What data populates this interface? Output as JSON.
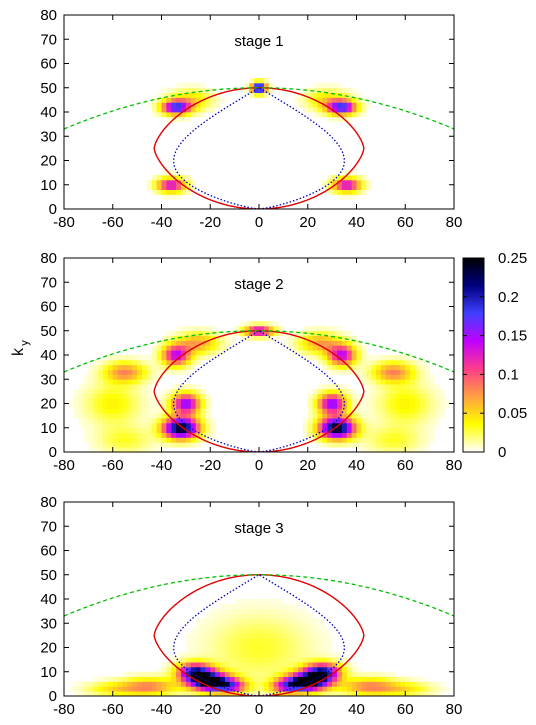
{
  "figure": {
    "ylabel": "k",
    "ylabel_sub": "y"
  },
  "colorbar": {
    "ticks": [
      "0.25",
      "0.2",
      "0.15",
      "0.1",
      "0.05",
      "0"
    ],
    "tick_values": [
      0.25,
      0.2,
      0.15,
      0.1,
      0.05,
      0
    ],
    "range": [
      0,
      0.25
    ],
    "stops": [
      "#ffffff",
      "#ffff00",
      "#ffa040",
      "#ff3c8c",
      "#c000ff",
      "#4040ff",
      "#000080",
      "#000000"
    ]
  },
  "colors": {
    "red_curve": "#e00000",
    "blue_curve": "#0000c0",
    "green_curve": "#00c000"
  },
  "chart_data": [
    {
      "type": "heatmap",
      "title": "stage 1",
      "xlim": [
        -80,
        80
      ],
      "ylim": [
        0,
        80
      ],
      "xticks": [
        "-80",
        "-60",
        "-40",
        "-20",
        "0",
        "20",
        "40",
        "60",
        "80"
      ],
      "yticks": [
        "0",
        "10",
        "20",
        "30",
        "40",
        "50",
        "60",
        "70",
        "80"
      ],
      "hotspots": [
        {
          "x": 0,
          "y": 50,
          "value": 0.25,
          "sx": 2,
          "sy": 1.5
        },
        {
          "x": -34,
          "y": 42,
          "value": 0.18,
          "sx": 4,
          "sy": 2
        },
        {
          "x": 34,
          "y": 42,
          "value": 0.18,
          "sx": 4,
          "sy": 2
        },
        {
          "x": -36,
          "y": 10,
          "value": 0.14,
          "sx": 4,
          "sy": 2
        },
        {
          "x": 36,
          "y": 10,
          "value": 0.14,
          "sx": 4,
          "sy": 2
        },
        {
          "x": -28,
          "y": 45,
          "value": 0.05,
          "sx": 6,
          "sy": 3
        },
        {
          "x": 28,
          "y": 45,
          "value": 0.05,
          "sx": 6,
          "sy": 3
        }
      ]
    },
    {
      "type": "heatmap",
      "title": "stage 2",
      "xlim": [
        -80,
        80
      ],
      "ylim": [
        0,
        80
      ],
      "xticks": [
        "-80",
        "-60",
        "-40",
        "-20",
        "0",
        "20",
        "40",
        "60",
        "80"
      ],
      "yticks": [
        "0",
        "10",
        "20",
        "30",
        "40",
        "50",
        "60",
        "70",
        "80"
      ],
      "hotspots": [
        {
          "x": -32,
          "y": 10,
          "value": 0.25,
          "sx": 5,
          "sy": 3
        },
        {
          "x": 32,
          "y": 10,
          "value": 0.25,
          "sx": 5,
          "sy": 3
        },
        {
          "x": -30,
          "y": 20,
          "value": 0.16,
          "sx": 4,
          "sy": 3
        },
        {
          "x": 30,
          "y": 20,
          "value": 0.16,
          "sx": 4,
          "sy": 3
        },
        {
          "x": -34,
          "y": 40,
          "value": 0.14,
          "sx": 4,
          "sy": 3
        },
        {
          "x": 34,
          "y": 40,
          "value": 0.14,
          "sx": 4,
          "sy": 3
        },
        {
          "x": 0,
          "y": 50,
          "value": 0.15,
          "sx": 4,
          "sy": 1.5
        },
        {
          "x": -55,
          "y": 33,
          "value": 0.08,
          "sx": 6,
          "sy": 3
        },
        {
          "x": 55,
          "y": 33,
          "value": 0.08,
          "sx": 6,
          "sy": 3
        },
        {
          "x": -25,
          "y": 45,
          "value": 0.07,
          "sx": 6,
          "sy": 3
        },
        {
          "x": 25,
          "y": 45,
          "value": 0.07,
          "sx": 6,
          "sy": 3
        },
        {
          "x": -60,
          "y": 20,
          "value": 0.04,
          "sx": 8,
          "sy": 6
        },
        {
          "x": 60,
          "y": 20,
          "value": 0.04,
          "sx": 8,
          "sy": 6
        },
        {
          "x": -55,
          "y": 5,
          "value": 0.03,
          "sx": 8,
          "sy": 4
        },
        {
          "x": 55,
          "y": 5,
          "value": 0.03,
          "sx": 8,
          "sy": 4
        }
      ]
    },
    {
      "type": "heatmap",
      "title": "stage 3",
      "xlim": [
        -80,
        80
      ],
      "ylim": [
        0,
        80
      ],
      "xticks": [
        "-80",
        "-60",
        "-40",
        "-20",
        "0",
        "20",
        "40",
        "60",
        "80"
      ],
      "yticks": [
        "0",
        "10",
        "20",
        "30",
        "40",
        "50",
        "60",
        "70",
        "80"
      ],
      "hotspots": [
        {
          "x": -20,
          "y": 6,
          "value": 0.25,
          "sx": 6,
          "sy": 2.5
        },
        {
          "x": 20,
          "y": 6,
          "value": 0.25,
          "sx": 6,
          "sy": 2.5
        },
        {
          "x": -26,
          "y": 10,
          "value": 0.2,
          "sx": 5,
          "sy": 2.5
        },
        {
          "x": 26,
          "y": 10,
          "value": 0.2,
          "sx": 5,
          "sy": 2.5
        },
        {
          "x": -12,
          "y": 4,
          "value": 0.12,
          "sx": 5,
          "sy": 2
        },
        {
          "x": 12,
          "y": 4,
          "value": 0.12,
          "sx": 5,
          "sy": 2
        },
        {
          "x": -45,
          "y": 4,
          "value": 0.08,
          "sx": 8,
          "sy": 2.5
        },
        {
          "x": 45,
          "y": 4,
          "value": 0.08,
          "sx": 8,
          "sy": 2.5
        },
        {
          "x": -60,
          "y": 3,
          "value": 0.04,
          "sx": 8,
          "sy": 2
        },
        {
          "x": 60,
          "y": 3,
          "value": 0.04,
          "sx": 8,
          "sy": 2
        },
        {
          "x": 0,
          "y": 20,
          "value": 0.03,
          "sx": 15,
          "sy": 10
        }
      ]
    }
  ]
}
